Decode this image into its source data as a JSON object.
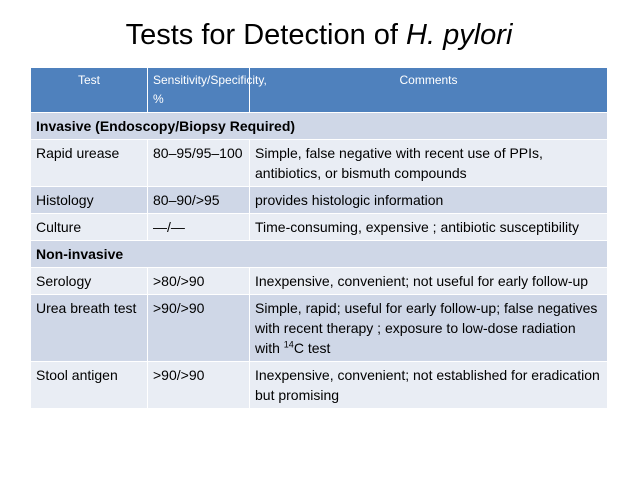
{
  "title": {
    "main": "Tests for Detection of ",
    "italic": "H. pylori"
  },
  "table": {
    "headers": [
      "Test",
      "Sensitivity/Specificity, %",
      "Comments"
    ],
    "sections": {
      "invasive": "Invasive (Endoscopy/Biopsy Required)",
      "noninvasive": "Non-invasive"
    },
    "rows": [
      {
        "test": "Rapid urease",
        "sens": "80–95/95–100",
        "comments": "Simple, false negative with recent use of PPIs, antibiotics, or bismuth compounds"
      },
      {
        "test": "Histology",
        "sens": "80–90/>95",
        "comments": "provides histologic information"
      },
      {
        "test": "Culture",
        "sens": "—/—",
        "comments": "Time-consuming, expensive ; antibiotic susceptibility"
      },
      {
        "test": "Serology",
        "sens": ">80/>90",
        "comments": "Inexpensive, convenient; not useful for early follow-up"
      },
      {
        "test": "Urea breath test",
        "sens": ">90/>90",
        "comments_pre": "Simple, rapid; useful for early follow-up; false negatives with recent therapy ; exposure to low-dose radiation with ",
        "comments_sup": "14",
        "comments_post": "C test"
      },
      {
        "test": "Stool antigen",
        "sens": ">90/>90",
        "comments": "Inexpensive, convenient; not established for eradication but promising"
      }
    ]
  },
  "colors": {
    "header": "#4f81bd",
    "band_dark": "#cfd7e7",
    "band_light": "#e9edf4"
  }
}
